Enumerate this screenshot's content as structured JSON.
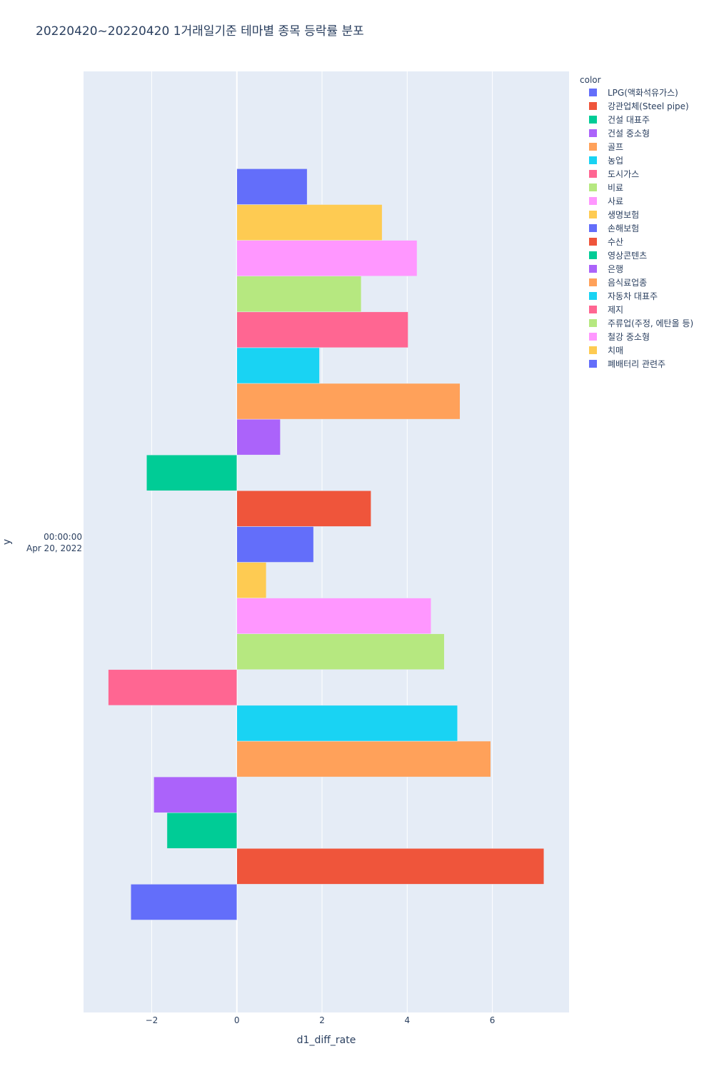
{
  "chart_data": {
    "type": "bar",
    "orientation": "horizontal",
    "title": "20220420~20220420 1거래일기준 테마별 종목 등락률 분포",
    "xlabel": "d1_diff_rate",
    "ylabel": "y",
    "y_category": [
      "00:00:00",
      "Apr 20, 2022"
    ],
    "xlim": [
      -3.6,
      7.8
    ],
    "x_ticks": [
      {
        "value": -2,
        "label": "−2"
      },
      {
        "value": 0,
        "label": "0"
      },
      {
        "value": 2,
        "label": "2"
      },
      {
        "value": 4,
        "label": "4"
      },
      {
        "value": 6,
        "label": "6"
      }
    ],
    "grid": true,
    "legend_title": "color",
    "legend_position": "right",
    "series": [
      {
        "name": "LPG(액화석유가스)",
        "color": "#636efa",
        "value": -2.49
      },
      {
        "name": "강관업체(Steel pipe)",
        "color": "#EF553B",
        "value": 7.21
      },
      {
        "name": "건설 대표주",
        "color": "#00cc96",
        "value": -1.64
      },
      {
        "name": "건설 중소형",
        "color": "#ab63fa",
        "value": -1.95
      },
      {
        "name": "골프",
        "color": "#FFA15A",
        "value": 5.96
      },
      {
        "name": "농업",
        "color": "#19d3f3",
        "value": 5.18
      },
      {
        "name": "도시가스",
        "color": "#FF6692",
        "value": -3.02
      },
      {
        "name": "비료",
        "color": "#B6E880",
        "value": 4.87
      },
      {
        "name": "사료",
        "color": "#FF97FF",
        "value": 4.56
      },
      {
        "name": "생명보험",
        "color": "#FECB52",
        "value": 0.69
      },
      {
        "name": "손해보험",
        "color": "#636efa",
        "value": 1.8
      },
      {
        "name": "수산",
        "color": "#EF553B",
        "value": 3.15
      },
      {
        "name": "영상콘텐츠",
        "color": "#00cc96",
        "value": -2.12
      },
      {
        "name": "은행",
        "color": "#ab63fa",
        "value": 1.02
      },
      {
        "name": "음식료업종",
        "color": "#FFA15A",
        "value": 5.24
      },
      {
        "name": "자동차 대표주",
        "color": "#19d3f3",
        "value": 1.94
      },
      {
        "name": "제지",
        "color": "#FF6692",
        "value": 4.02
      },
      {
        "name": "주류업(주정, 에탄올 등)",
        "color": "#B6E880",
        "value": 2.92
      },
      {
        "name": "철강 중소형",
        "color": "#FF97FF",
        "value": 4.23
      },
      {
        "name": "치매",
        "color": "#FECB52",
        "value": 3.41
      },
      {
        "name": "폐배터리 관련주",
        "color": "#636efa",
        "value": 1.65
      }
    ]
  }
}
